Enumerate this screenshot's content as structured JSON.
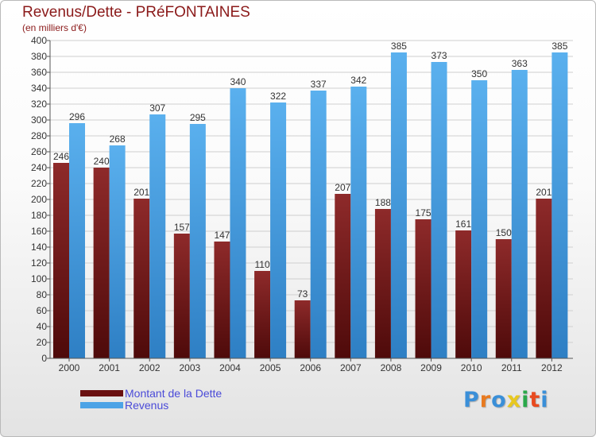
{
  "title": "Revenus/Dette - PRéFONTAINES",
  "subtitle": "(en milliers d'€)",
  "logo": {
    "text": "Proxiti",
    "letter_colors": [
      "#3a8fd8",
      "#e87a1f",
      "#3a8fd8",
      "#e8c81f",
      "#2aa84a",
      "#e84a1f",
      "#3a8fd8"
    ]
  },
  "colors": {
    "dette": "#7a1a1a",
    "revenus": "#4da3e6",
    "grid": "#cfcfcf",
    "axis": "#555555",
    "label": "#333333"
  },
  "chart_data": {
    "type": "bar",
    "title": "Revenus/Dette - PRéFONTAINES",
    "ylabel": "(en milliers d'€)",
    "xlabel": "",
    "ylim": [
      0,
      400
    ],
    "y_ticks": [
      0,
      20,
      40,
      60,
      80,
      100,
      120,
      140,
      160,
      180,
      200,
      220,
      240,
      260,
      280,
      300,
      320,
      340,
      360,
      380,
      400
    ],
    "grid": true,
    "legend_position": "bottom-left",
    "categories": [
      "2000",
      "2001",
      "2002",
      "2003",
      "2004",
      "2005",
      "2006",
      "2007",
      "2008",
      "2009",
      "2010",
      "2011",
      "2012"
    ],
    "series": [
      {
        "name": "Montant de la Dette",
        "values": [
          246,
          240,
          201,
          157,
          147,
          110,
          73,
          207,
          188,
          175,
          161,
          150,
          201
        ]
      },
      {
        "name": "Revenus",
        "values": [
          296,
          268,
          307,
          295,
          340,
          322,
          337,
          342,
          385,
          373,
          350,
          363,
          385
        ]
      }
    ]
  }
}
